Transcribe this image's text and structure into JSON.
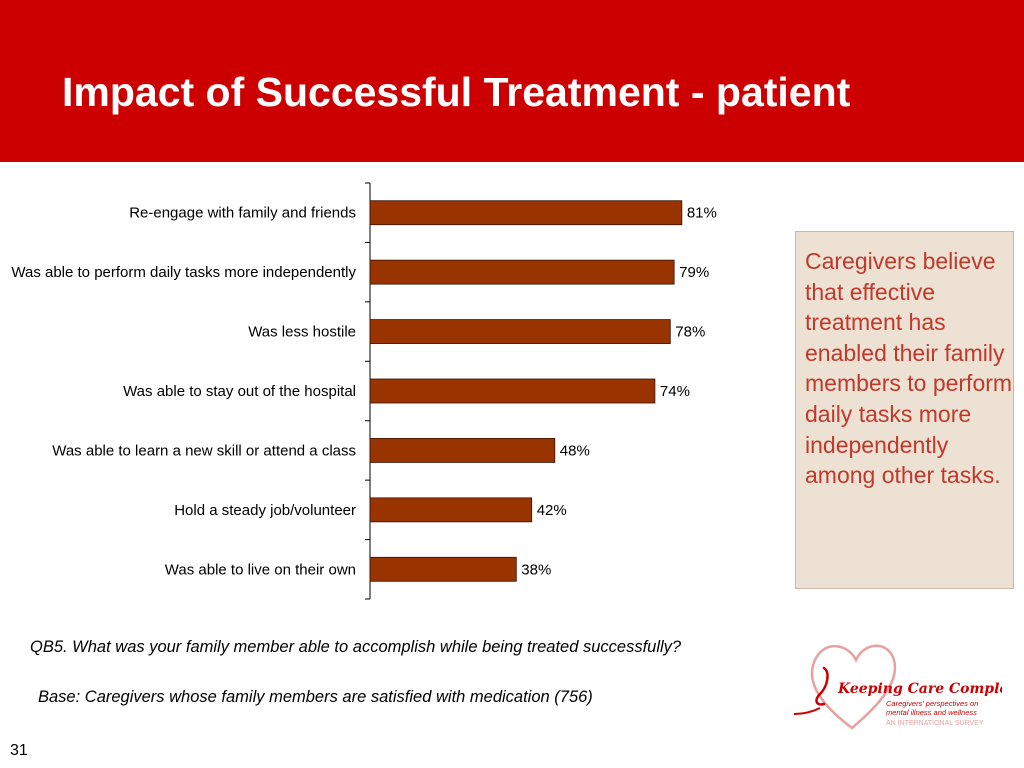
{
  "slide": {
    "title": "Impact of Successful Treatment - patient",
    "callout": "Caregivers believe that effective treatment has enabled their family members to perform daily tasks more independently among other tasks.",
    "question": "QB5. What was your family member able to accomplish while being treated successfully?",
    "base": "Base: Caregivers whose family members are satisfied with medication (756)",
    "slide_number": "31",
    "logo": {
      "name": "Keeping Care Complete",
      "tagline_1": "Caregivers' perspectives on",
      "tagline_2": "mental illness and wellness",
      "tagline_3": "AN INTERNATIONAL SURVEY"
    }
  },
  "colors": {
    "header": "#cc0000",
    "bar": "#993300",
    "callout_bg": "#ece1d2",
    "callout_text": "#c0392b"
  },
  "chart_data": {
    "type": "bar",
    "orientation": "horizontal",
    "categories": [
      "Re-engage with family and friends",
      "Was able to perform daily tasks more independently",
      "Was less hostile",
      "Was able to stay out of the hospital",
      "Was able to learn a new skill or attend a class",
      "Hold a steady job/volunteer",
      "Was able to live on their own"
    ],
    "values": [
      81,
      79,
      78,
      74,
      48,
      42,
      38
    ],
    "data_labels": [
      "81%",
      "79%",
      "78%",
      "74%",
      "48%",
      "42%",
      "38%"
    ],
    "unit": "%",
    "xlim": [
      0,
      100
    ],
    "grid": false,
    "legend": "none"
  }
}
